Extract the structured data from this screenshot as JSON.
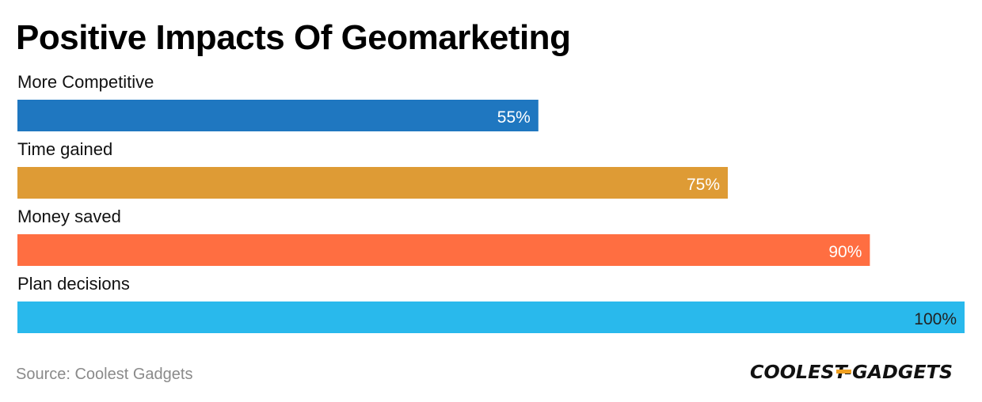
{
  "chart_data": {
    "type": "bar",
    "orientation": "horizontal",
    "title": "Positive Impacts Of Geomarketing",
    "categories": [
      "More Competitive",
      "Time gained",
      "Money saved",
      "Plan decisions"
    ],
    "values": [
      55,
      75,
      90,
      100
    ],
    "value_labels": [
      "55%",
      "75%",
      "90%",
      "100%"
    ],
    "colors": [
      "#1f77c0",
      "#de9b35",
      "#ff6e41",
      "#29b9ec"
    ],
    "xlim": [
      0,
      100
    ],
    "grid": false,
    "legend": "none"
  },
  "footer": {
    "source": "Source: Coolest Gadgets"
  },
  "logo": {
    "text": "COOLEST-GADGETS"
  }
}
